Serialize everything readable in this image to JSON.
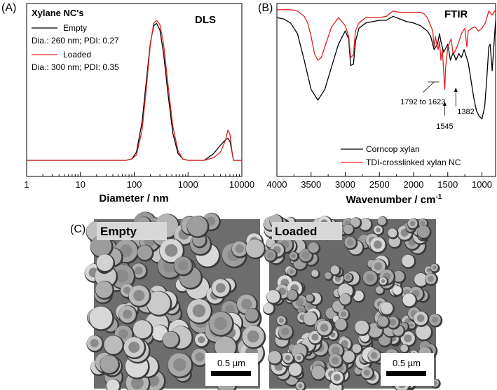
{
  "chart_data": [
    {
      "type": "line",
      "panel": "(A)",
      "title": "DLS",
      "xlabel": "Diameter / nm",
      "ylabel": "",
      "xscale": "log",
      "xlim": [
        1,
        10000
      ],
      "x_ticks": [
        "1",
        "10",
        "100",
        "1000",
        "10000"
      ],
      "grid": false,
      "legend_title": "Xylane NC's",
      "legend_position": "top-left",
      "series": [
        {
          "name": "Empty",
          "detail": "Dia.: 260 nm; PDI: 0.27",
          "color": "#000000",
          "x": [
            70,
            90,
            110,
            140,
            170,
            200,
            230,
            260,
            300,
            350,
            420,
            520,
            650,
            800,
            1000,
            2000,
            3000,
            4000,
            5000,
            5500,
            6000,
            6500,
            7000
          ],
          "y": [
            0,
            0.01,
            0.06,
            0.28,
            0.6,
            0.86,
            0.98,
            1.0,
            0.95,
            0.78,
            0.5,
            0.2,
            0.05,
            0.01,
            0,
            0,
            0.05,
            0.11,
            0.15,
            0.16,
            0.14,
            0.07,
            0
          ]
        },
        {
          "name": "Loaded",
          "detail": "Dia.: 300 nm; PDI: 0.35",
          "color": "#e02020",
          "x": [
            70,
            90,
            110,
            140,
            170,
            200,
            230,
            260,
            300,
            350,
            420,
            520,
            650,
            800,
            1000,
            2000,
            3000,
            4000,
            5000,
            5500,
            6000,
            6500,
            7000
          ],
          "y": [
            0,
            0.01,
            0.04,
            0.22,
            0.55,
            0.85,
            1.0,
            1.02,
            0.99,
            0.85,
            0.57,
            0.25,
            0.07,
            0.01,
            0,
            0,
            0.02,
            0.06,
            0.15,
            0.22,
            0.19,
            0.08,
            0
          ]
        }
      ]
    },
    {
      "type": "line",
      "panel": "(B)",
      "title": "FTIR",
      "xlabel": "Wavenumber / cm",
      "xlabel_sup": "-1",
      "ylabel": "",
      "xlim": [
        4000,
        800
      ],
      "x_ticks": [
        "4000",
        "3500",
        "3000",
        "2500",
        "2000",
        "1500",
        "1000"
      ],
      "grid": false,
      "legend_position": "bottom-right",
      "annotations": [
        {
          "label": "1792 to 1623",
          "x": 1700
        },
        {
          "label": "1545",
          "x": 1545
        },
        {
          "label": "1382",
          "x": 1382
        }
      ],
      "series": [
        {
          "name": "Corncop xylan",
          "color": "#000000",
          "x": [
            4000,
            3900,
            3800,
            3700,
            3600,
            3500,
            3400,
            3300,
            3200,
            3100,
            3000,
            2950,
            2920,
            2880,
            2850,
            2800,
            2700,
            2600,
            2500,
            2400,
            2300,
            2200,
            2100,
            2000,
            1900,
            1800,
            1750,
            1700,
            1650,
            1620,
            1600,
            1560,
            1500,
            1460,
            1420,
            1380,
            1340,
            1300,
            1260,
            1200,
            1160,
            1120,
            1080,
            1040,
            1000,
            960,
            930,
            900,
            880,
            850,
            800
          ],
          "y": [
            92,
            91,
            88,
            80,
            60,
            38,
            30,
            38,
            55,
            72,
            82,
            76,
            56,
            57,
            74,
            84,
            88,
            89,
            90,
            90,
            93,
            91,
            89,
            88,
            86,
            82,
            78,
            68,
            72,
            80,
            74,
            66,
            72,
            60,
            66,
            60,
            65,
            62,
            68,
            58,
            45,
            32,
            22,
            18,
            16,
            25,
            45,
            70,
            72,
            52,
            90
          ]
        },
        {
          "name": "TDI-crosslinked xylan NC",
          "color": "#e02020",
          "x": [
            4000,
            3900,
            3800,
            3700,
            3600,
            3550,
            3500,
            3450,
            3400,
            3350,
            3300,
            3200,
            3100,
            3000,
            2950,
            2920,
            2880,
            2850,
            2800,
            2700,
            2600,
            2500,
            2400,
            2300,
            2200,
            2100,
            2000,
            1900,
            1850,
            1800,
            1750,
            1720,
            1700,
            1680,
            1660,
            1640,
            1620,
            1600,
            1580,
            1560,
            1545,
            1530,
            1500,
            1450,
            1420,
            1382,
            1350,
            1300,
            1250,
            1220,
            1200,
            1150,
            1100,
            1050,
            1000,
            950,
            900,
            850,
            800
          ],
          "y": [
            98,
            98,
            98,
            97,
            93,
            88,
            78,
            65,
            60,
            62,
            70,
            85,
            92,
            86,
            78,
            62,
            64,
            82,
            88,
            92,
            92,
            92,
            93,
            97,
            96,
            96,
            96,
            96,
            95,
            92,
            86,
            82,
            70,
            78,
            72,
            68,
            74,
            60,
            68,
            52,
            38,
            55,
            70,
            76,
            64,
            68,
            72,
            80,
            84,
            70,
            82,
            84,
            85,
            82,
            84,
            88,
            97,
            94,
            98
          ]
        }
      ]
    }
  ],
  "sem": {
    "panel": "(C)",
    "images": [
      {
        "label": "Empty",
        "scale_bar": "0.5 µm"
      },
      {
        "label": "Loaded",
        "scale_bar": "0.5 µm"
      }
    ]
  }
}
